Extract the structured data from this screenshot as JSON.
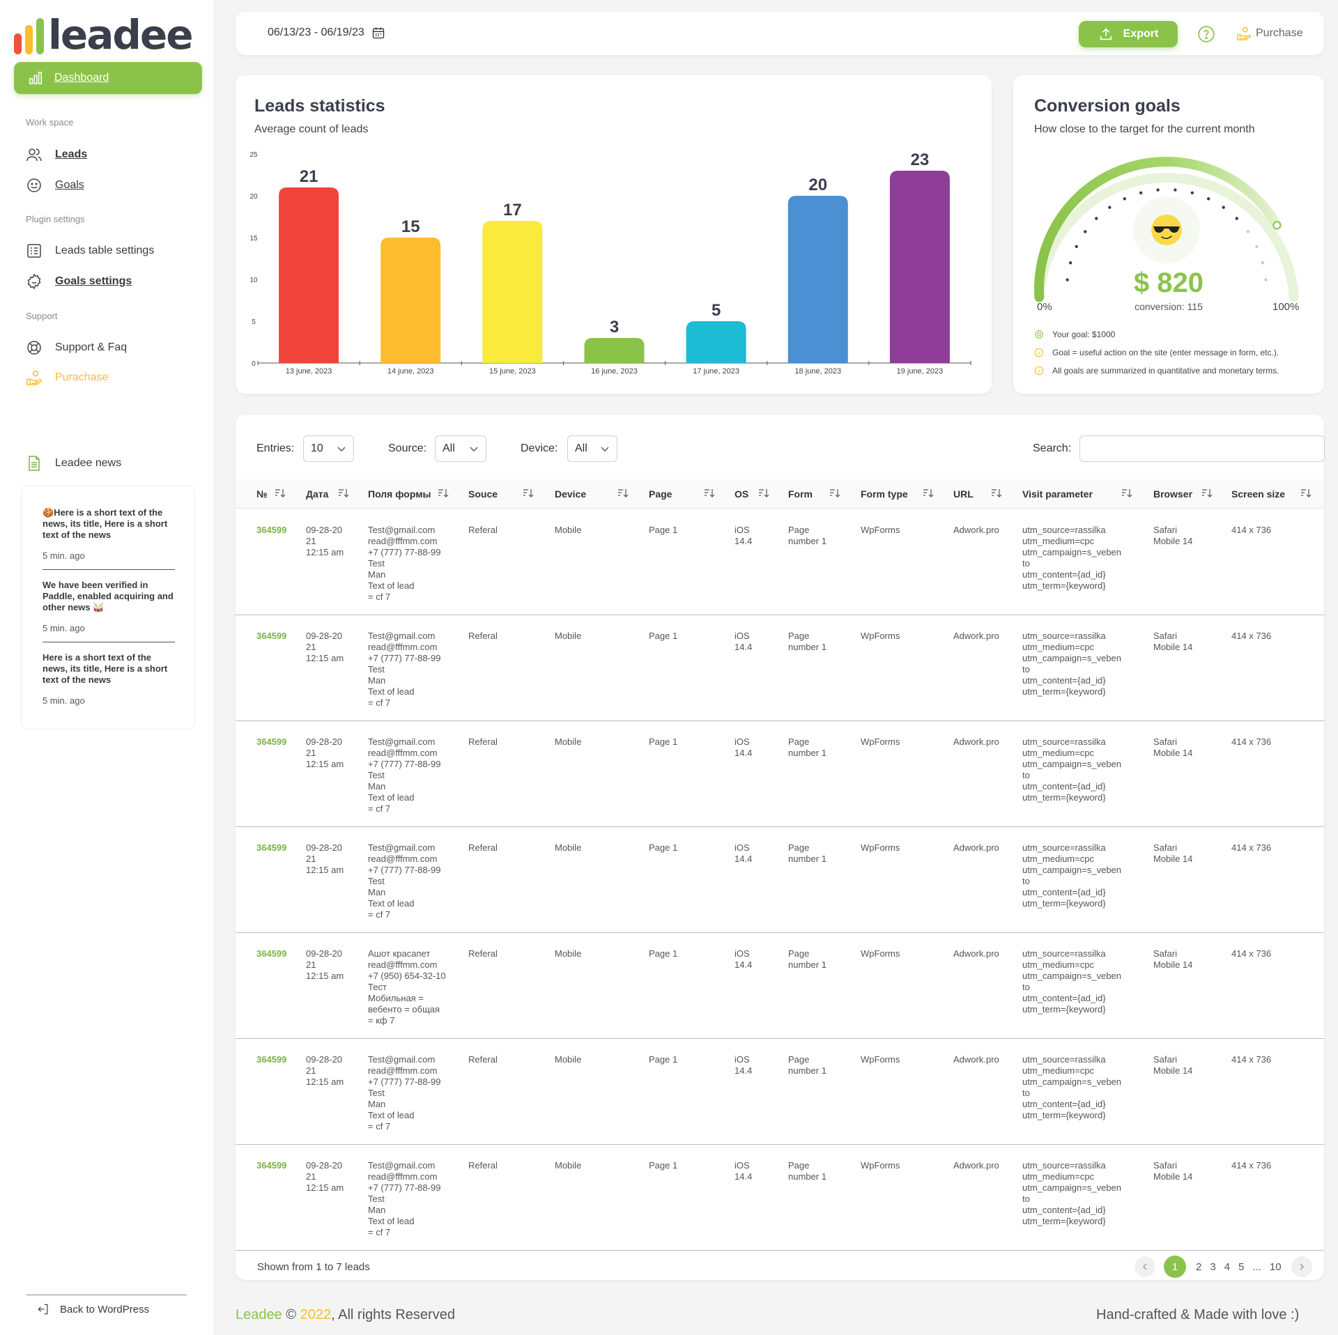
{
  "sidebar": {
    "logo_text": "leadee",
    "logo_colors": [
      "#f0503c",
      "#fbbd2d",
      "#8bc34a"
    ],
    "dashboard_label": "Dashboard",
    "workspace_title": "Work space",
    "leads_label": "Leads",
    "goals_label": "Goals",
    "plugin_title": "Plugin settings",
    "leads_table_settings_label": "Leads table settings",
    "goals_settings_label": "Goals settings",
    "support_title": "Support",
    "support_faq_label": "Support & Faq",
    "purchase_label": "Purachase",
    "news_title": "Leadee news",
    "news": [
      {
        "text": "🍪Here is a short text of the news, its title, Here is a short text of the news",
        "time": "5 min. ago"
      },
      {
        "text": "We have been verified in Paddle, enabled acquiring and other news 🥁",
        "time": "5 min. ago"
      },
      {
        "text": "Here is a short text of the news, its title, Here is a short text of the news",
        "time": "5 min. ago"
      }
    ],
    "back_label": "Back to WordPress"
  },
  "topbar": {
    "date_range": "06/13/23 - 06/19/23",
    "export_label": "Export",
    "purchase_label": "Purchase"
  },
  "stats": {
    "title": "Leads statistics",
    "subtitle": "Average count of leads"
  },
  "chart_data": {
    "type": "bar",
    "categories": [
      "13 june, 2023",
      "14 june, 2023",
      "15 june, 2023",
      "16 june, 2023",
      "17 june, 2023",
      "18 june, 2023",
      "19 june, 2023"
    ],
    "values": [
      21,
      15,
      17,
      3,
      5,
      20,
      23
    ],
    "colors": [
      "#f0443a",
      "#fbbd2d",
      "#f9ea3b",
      "#8bc34a",
      "#1bbcd4",
      "#4a90d2",
      "#8e3d99"
    ],
    "ylim": [
      0,
      25
    ],
    "yticks": [
      0,
      5,
      10,
      15,
      20,
      25
    ],
    "title": "",
    "xlabel": "",
    "ylabel": "",
    "grid": false
  },
  "goals": {
    "title": "Conversion goals",
    "subtitle": "How close to the target for the current month",
    "value": "$ 820",
    "progress_fraction": 0.82,
    "conversion": "conversion: 115",
    "min_label": "0%",
    "max_label": "100%",
    "notes": [
      "Your goal: $1000",
      "Goal = useful action on the site (enter message in form, etc.).",
      "All goals are summarized in quantitative and monetary terms."
    ]
  },
  "filters": {
    "entries_label": "Entries:",
    "entries_value": "10",
    "source_label": "Source:",
    "source_value": "All",
    "device_label": "Device:",
    "device_value": "All",
    "search_label": "Search:",
    "search_value": ""
  },
  "table": {
    "columns": [
      "№",
      "Дата",
      "Поля формы",
      "Souce",
      "Device",
      "Page",
      "OS",
      "Form",
      "Form type",
      "URL",
      "Visit parameter",
      "Browser",
      "Screen size"
    ],
    "rows": [
      {
        "id": "364599",
        "date": "09-28-20\n21\n12:15 am",
        "fields": "Test@gmail.com\nread@fffmm.com\n+7 (777) 77-88-99\nTest\nMan\nText of lead\n= cf 7",
        "source": "Referal",
        "device": "Mobile",
        "page": "Page 1",
        "os": "iOS\n14.4",
        "form": "Page\nnumber 1",
        "form_type": "WpForms",
        "url": "Adwork.pro",
        "visit": "utm_source=rassilka\nutm_medium=cpc\nutm_campaign=s_veben\nto\nutm_content={ad_id}\nutm_term={keyword}",
        "browser": "Safari\nMobile 14",
        "screen": "414 x 736"
      },
      {
        "id": "364599",
        "date": "09-28-20\n21\n12:15 am",
        "fields": "Test@gmail.com\nread@fffmm.com\n+7 (777) 77-88-99\nTest\nMan\nText of lead\n= cf 7",
        "source": "Referal",
        "device": "Mobile",
        "page": "Page 1",
        "os": "iOS\n14.4",
        "form": "Page\nnumber 1",
        "form_type": "WpForms",
        "url": "Adwork.pro",
        "visit": "utm_source=rassilka\nutm_medium=cpc\nutm_campaign=s_veben\nto\nutm_content={ad_id}\nutm_term={keyword}",
        "browser": "Safari\nMobile 14",
        "screen": "414 x 736"
      },
      {
        "id": "364599",
        "date": "09-28-20\n21\n12:15 am",
        "fields": "Test@gmail.com\nread@fffmm.com\n+7 (777) 77-88-99\nTest\nMan\nText of lead\n= cf 7",
        "source": "Referal",
        "device": "Mobile",
        "page": "Page 1",
        "os": "iOS\n14.4",
        "form": "Page\nnumber 1",
        "form_type": "WpForms",
        "url": "Adwork.pro",
        "visit": "utm_source=rassilka\nutm_medium=cpc\nutm_campaign=s_veben\nto\nutm_content={ad_id}\nutm_term={keyword}",
        "browser": "Safari\nMobile 14",
        "screen": "414 x 736"
      },
      {
        "id": "364599",
        "date": "09-28-20\n21\n12:15 am",
        "fields": "Test@gmail.com\nread@fffmm.com\n+7 (777) 77-88-99\nTest\nMan\nText of lead\n= cf 7",
        "source": "Referal",
        "device": "Mobile",
        "page": "Page 1",
        "os": "iOS\n14.4",
        "form": "Page\nnumber 1",
        "form_type": "WpForms",
        "url": "Adwork.pro",
        "visit": "utm_source=rassilka\nutm_medium=cpc\nutm_campaign=s_veben\nto\nutm_content={ad_id}\nutm_term={keyword}",
        "browser": "Safari\nMobile 14",
        "screen": "414 x 736"
      },
      {
        "id": "364599",
        "date": "09-28-20\n21\n12:15 am",
        "fields": "Ашот красапет\nread@fffmm.com\n+7 (950) 654-32-10\nТест\nМобильная =\nвебенто = общая\n= кф 7",
        "source": "Referal",
        "device": "Mobile",
        "page": "Page 1",
        "os": "iOS\n14.4",
        "form": "Page\nnumber 1",
        "form_type": "WpForms",
        "url": "Adwork.pro",
        "visit": "utm_source=rassilka\nutm_medium=cpc\nutm_campaign=s_veben\nto\nutm_content={ad_id}\nutm_term={keyword}",
        "browser": "Safari\nMobile 14",
        "screen": "414 x 736"
      },
      {
        "id": "364599",
        "date": "09-28-20\n21\n12:15 am",
        "fields": "Test@gmail.com\nread@fffmm.com\n+7 (777) 77-88-99\nTest\nMan\nText of lead\n= cf 7",
        "source": "Referal",
        "device": "Mobile",
        "page": "Page 1",
        "os": "iOS\n14.4",
        "form": "Page\nnumber 1",
        "form_type": "WpForms",
        "url": "Adwork.pro",
        "visit": "utm_source=rassilka\nutm_medium=cpc\nutm_campaign=s_veben\nto\nutm_content={ad_id}\nutm_term={keyword}",
        "browser": "Safari\nMobile 14",
        "screen": "414 x 736"
      },
      {
        "id": "364599",
        "date": "09-28-20\n21\n12:15 am",
        "fields": "Test@gmail.com\nread@fffmm.com\n+7 (777) 77-88-99\nTest\nMan\nText of lead\n= cf 7",
        "source": "Referal",
        "device": "Mobile",
        "page": "Page 1",
        "os": "iOS\n14.4",
        "form": "Page\nnumber 1",
        "form_type": "WpForms",
        "url": "Adwork.pro",
        "visit": "utm_source=rassilka\nutm_medium=cpc\nutm_campaign=s_veben\nto\nutm_content={ad_id}\nutm_term={keyword}",
        "browser": "Safari\nMobile 14",
        "screen": "414 x 736"
      }
    ]
  },
  "pagination": {
    "shown_text": "Shown from 1 to 7 leads",
    "current": "1",
    "pages": [
      "2",
      "3",
      "4",
      "5",
      "...",
      "10"
    ]
  },
  "footer": {
    "brand": "Leadee",
    "copyright": " © ",
    "year": "2022",
    "rights": ", All rights Reserved",
    "tagline": "Hand-crafted & Made with love :)"
  }
}
